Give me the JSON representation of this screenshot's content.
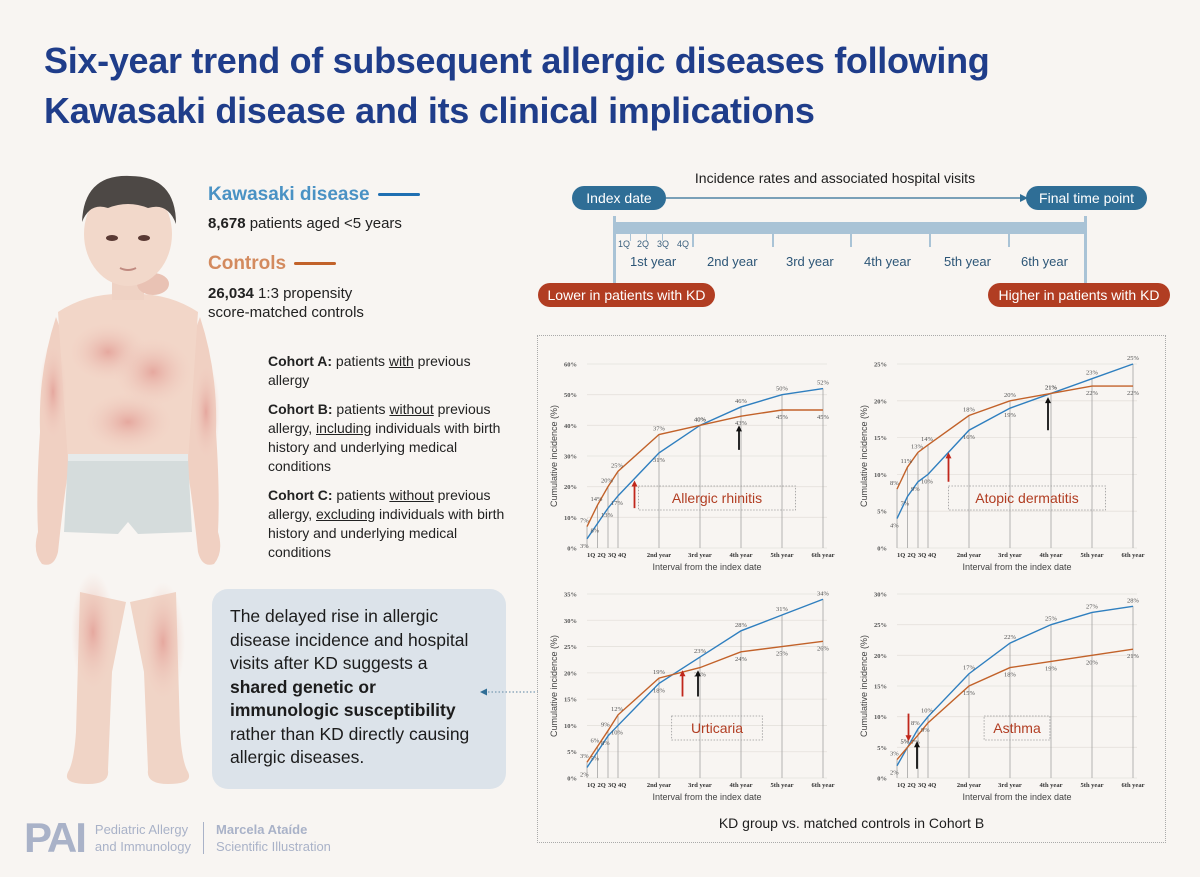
{
  "title": {
    "line1": "Six-year trend of subsequent allergic diseases following",
    "line2": "Kawasaki disease and its clinical implications"
  },
  "legend": {
    "kd": {
      "label": "Kawasaki disease",
      "count": "8,678",
      "desc": " patients aged <5 years",
      "color": "#1f6fb2"
    },
    "controls": {
      "label": "Controls",
      "count": "26,034",
      "desc1": " 1:3 propensity",
      "desc2": "score-matched controls",
      "color": "#c2622a"
    }
  },
  "cohorts": [
    {
      "label": "Cohort A:",
      "pre": " patients ",
      "u1": "with",
      "post": " previous allergy"
    },
    {
      "label": "Cohort B:",
      "pre": " patients ",
      "u1": "without",
      "mid": " previous allergy, ",
      "u2": "including",
      "post": " individuals with birth history and underlying medical conditions"
    },
    {
      "label": "Cohort C:",
      "pre": " patients ",
      "u1": "without",
      "mid": " previous allergy, ",
      "u2": "excluding",
      "post": " individuals with birth history and underlying medical conditions"
    }
  ],
  "callout": {
    "text1": "The delayed rise in allergic disease incidence and hospital visits after KD suggests a ",
    "bold": "shared genetic or immunologic susceptibility",
    "text2": " rather than KD directly causing allergic diseases."
  },
  "footer": {
    "logo": "PAI",
    "journal1": "Pediatric Allergy",
    "journal2": "and Immunology",
    "author": "Marcela Ataíde",
    "role": "Scientific Illustration"
  },
  "timeline": {
    "title": "Incidence rates and associated hospital visits",
    "start": "Index date",
    "end": "Final time point",
    "quarters": [
      "1Q",
      "2Q",
      "3Q",
      "4Q"
    ],
    "years": [
      "1st year",
      "2nd year",
      "3rd year",
      "4th year",
      "5th year",
      "6th year"
    ],
    "lower": "Lower in patients with KD",
    "higher": "Higher in patients with KD"
  },
  "charts_caption": "KD group vs. matched controls in Cohort B",
  "chart_data": [
    {
      "type": "line",
      "title": "Allergic rhinitis",
      "xlabel": "Interval from the index date",
      "ylabel": "Cumulative incidence (%)",
      "categories": [
        "1Q",
        "2Q",
        "3Q",
        "4Q",
        "2nd year",
        "3rd year",
        "4th year",
        "5th year",
        "6th year"
      ],
      "ylim": [
        0,
        60
      ],
      "yticks": [
        "0%",
        "10%",
        "20%",
        "30%",
        "40%",
        "50%",
        "60%"
      ],
      "series": [
        {
          "name": "Kawasaki disease",
          "color": "#2f7fbf",
          "values": [
            3,
            8,
            13,
            17,
            31,
            40,
            46,
            50,
            52
          ]
        },
        {
          "name": "Controls",
          "color": "#c2622a",
          "values": [
            7,
            14,
            20,
            25,
            37,
            40,
            43,
            45,
            45
          ]
        }
      ],
      "annotations": {
        "red_arrow_at": 1.5,
        "black_arrow_at": 6
      }
    },
    {
      "type": "line",
      "title": "Atopic dermatitis",
      "xlabel": "Interval from the index date",
      "ylabel": "Cumulative incidence (%)",
      "categories": [
        "1Q",
        "2Q",
        "3Q",
        "4Q",
        "2nd year",
        "3rd year",
        "4th year",
        "5th year",
        "6th year"
      ],
      "ylim": [
        0,
        25
      ],
      "yticks": [
        "0%",
        "5%",
        "10%",
        "15%",
        "20%",
        "25%"
      ],
      "series": [
        {
          "name": "Kawasaki disease",
          "color": "#2f7fbf",
          "values": [
            4,
            7,
            9,
            10,
            16,
            19,
            21,
            23,
            25
          ]
        },
        {
          "name": "Controls",
          "color": "#c2622a",
          "values": [
            8,
            11,
            13,
            14,
            18,
            20,
            21,
            22,
            22
          ]
        }
      ],
      "annotations": {
        "red_arrow_at": 1.5,
        "black_arrow_at": 6
      }
    },
    {
      "type": "line",
      "title": "Urticaria",
      "xlabel": "Interval from the index date",
      "ylabel": "Cumulative incidence (%)",
      "categories": [
        "1Q",
        "2Q",
        "3Q",
        "4Q",
        "2nd year",
        "3rd year",
        "4th year",
        "5th year",
        "6th year"
      ],
      "ylim": [
        0,
        35
      ],
      "yticks": [
        "0%",
        "5%",
        "10%",
        "15%",
        "20%",
        "25%",
        "30%",
        "35%"
      ],
      "series": [
        {
          "name": "Kawasaki disease",
          "color": "#2f7fbf",
          "values": [
            2,
            5,
            8,
            10,
            18,
            23,
            28,
            31,
            34
          ]
        },
        {
          "name": "Controls",
          "color": "#c2622a",
          "values": [
            3,
            6,
            9,
            12,
            19,
            21,
            24,
            25,
            26
          ]
        }
      ],
      "annotations": {
        "red_arrow_at": 2.5,
        "black_arrow_at": 3
      }
    },
    {
      "type": "line",
      "title": "Asthma",
      "xlabel": "Interval from the index date",
      "ylabel": "Cumulative incidence (%)",
      "categories": [
        "1Q",
        "2Q",
        "3Q",
        "4Q",
        "2nd year",
        "3rd year",
        "4th year",
        "5th year",
        "6th year"
      ],
      "ylim": [
        0,
        30
      ],
      "yticks": [
        "0%",
        "5%",
        "10%",
        "15%",
        "20%",
        "25%",
        "30%"
      ],
      "series": [
        {
          "name": "Kawasaki disease",
          "color": "#2f7fbf",
          "values": [
            2,
            5,
            8,
            10,
            17,
            22,
            25,
            27,
            28
          ]
        },
        {
          "name": "Controls",
          "color": "#c2622a",
          "values": [
            3,
            5,
            7,
            9,
            15,
            18,
            19,
            20,
            21
          ]
        }
      ],
      "annotations": {
        "red_arrow_down_at": 0.5,
        "black_arrow_at": 0.75
      }
    }
  ]
}
